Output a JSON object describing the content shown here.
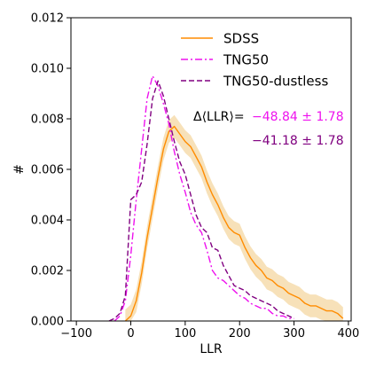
{
  "chart_data": {
    "type": "line",
    "title": "",
    "xlabel": "LLR",
    "ylabel": "#",
    "xlim": [
      -110,
      405
    ],
    "ylim": [
      0,
      0.012
    ],
    "xticks": [
      -100,
      0,
      100,
      200,
      300,
      400
    ],
    "xtick_labels": [
      "−100",
      "0",
      "100",
      "200",
      "300",
      "400"
    ],
    "yticks": [
      0.0,
      0.002,
      0.004,
      0.006,
      0.008,
      0.01,
      0.012
    ],
    "ytick_labels": [
      "0.000",
      "0.002",
      "0.004",
      "0.006",
      "0.008",
      "0.010",
      "0.012"
    ],
    "grid": false,
    "legend_position": "top-right",
    "series": [
      {
        "name": "SDSS",
        "color": "#ff8c00",
        "dash": "solid",
        "band_color": "#f5d9a8",
        "band": 0.00045,
        "x": [
          -10,
          0,
          10,
          20,
          30,
          40,
          50,
          60,
          70,
          80,
          90,
          100,
          110,
          120,
          130,
          140,
          150,
          160,
          170,
          180,
          190,
          200,
          210,
          220,
          230,
          240,
          250,
          260,
          270,
          280,
          290,
          300,
          310,
          320,
          330,
          340,
          350,
          360,
          370,
          380,
          390
        ],
        "y": [
          0.0,
          0.0002,
          0.0008,
          0.0019,
          0.0033,
          0.0045,
          0.0057,
          0.0068,
          0.0075,
          0.0077,
          0.0074,
          0.0071,
          0.0069,
          0.0065,
          0.0061,
          0.0055,
          0.005,
          0.0046,
          0.0041,
          0.0037,
          0.0035,
          0.0034,
          0.0029,
          0.0025,
          0.0022,
          0.002,
          0.0017,
          0.0016,
          0.0014,
          0.0013,
          0.0011,
          0.001,
          0.0009,
          0.0007,
          0.0006,
          0.0006,
          0.0005,
          0.0004,
          0.0004,
          0.0003,
          0.0001
        ]
      },
      {
        "name": "TNG50",
        "color": "#ee12ee",
        "dash": "8,3,2,3",
        "x": [
          -30,
          -20,
          -10,
          0,
          10,
          20,
          30,
          40,
          50,
          60,
          70,
          80,
          90,
          100,
          110,
          120,
          130,
          140,
          150,
          160,
          170,
          180,
          190,
          200,
          210,
          220,
          230,
          240,
          250,
          260,
          270,
          280,
          290,
          300
        ],
        "y": [
          0.0,
          0.0002,
          0.0008,
          0.0026,
          0.0048,
          0.0068,
          0.0088,
          0.0097,
          0.0093,
          0.0086,
          0.0078,
          0.0067,
          0.0058,
          0.0051,
          0.0043,
          0.0038,
          0.0035,
          0.0028,
          0.002,
          0.0017,
          0.0016,
          0.0014,
          0.0012,
          0.001,
          0.0009,
          0.0007,
          0.0006,
          0.0005,
          0.0005,
          0.0003,
          0.0002,
          0.0002,
          0.0001,
          0.0001
        ]
      },
      {
        "name": "TNG50-dustless",
        "color": "#800080",
        "dash": "6,3",
        "x": [
          -40,
          -30,
          -20,
          -10,
          0,
          10,
          20,
          30,
          40,
          50,
          60,
          70,
          80,
          90,
          100,
          110,
          120,
          130,
          140,
          150,
          160,
          170,
          180,
          190,
          200,
          210,
          220,
          230,
          240,
          250,
          260,
          270,
          280,
          290,
          300
        ],
        "y": [
          0.0,
          0.0001,
          0.0003,
          0.001,
          0.0048,
          0.005,
          0.0055,
          0.007,
          0.0088,
          0.0095,
          0.0089,
          0.008,
          0.0071,
          0.0063,
          0.0058,
          0.005,
          0.0042,
          0.0037,
          0.0035,
          0.0029,
          0.0028,
          0.0022,
          0.0018,
          0.0014,
          0.0013,
          0.0012,
          0.001,
          0.0009,
          0.0008,
          0.0007,
          0.0006,
          0.0004,
          0.0003,
          0.0002,
          0.0001
        ]
      }
    ],
    "annotations": [
      {
        "text": "Δ⟨LLR⟩=",
        "color": "#000000"
      },
      {
        "text": "−48.84 ± 1.78",
        "color": "#ee12ee"
      },
      {
        "text": "−41.18 ± 1.78",
        "color": "#800080"
      }
    ]
  }
}
